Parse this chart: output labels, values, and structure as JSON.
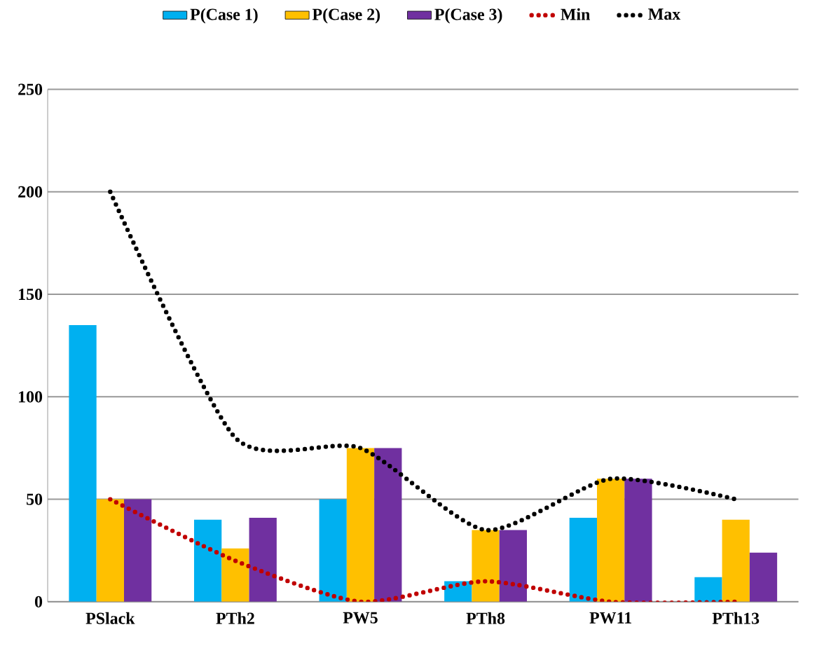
{
  "chart_data": {
    "type": "bar",
    "categories": [
      "PSlack",
      "PTh2",
      "PW5",
      "PTh8",
      "PW11",
      "PTh13"
    ],
    "series": [
      {
        "name": "P(Case 1)",
        "color": "#00b0f0",
        "values": [
          135,
          40,
          50,
          10,
          41,
          12
        ]
      },
      {
        "name": "P(Case 2)",
        "color": "#ffc000",
        "values": [
          50,
          26,
          75,
          35,
          60,
          40
        ]
      },
      {
        "name": "P(Case 3)",
        "color": "#7030a0",
        "values": [
          50,
          41,
          75,
          35,
          60,
          24
        ]
      },
      {
        "name": "Min",
        "type": "line",
        "color": "#c00000",
        "line_style": "dotted",
        "values": [
          50,
          20,
          0,
          10,
          0,
          0
        ]
      },
      {
        "name": "Max",
        "type": "line",
        "color": "#000000",
        "line_style": "dotted",
        "values": [
          200,
          80,
          75,
          35,
          60,
          50
        ]
      }
    ],
    "ylim": [
      0,
      250
    ],
    "yticks": [
      0,
      50,
      100,
      150,
      200,
      250
    ],
    "grid": "y",
    "legend": "top",
    "marker": "none"
  }
}
